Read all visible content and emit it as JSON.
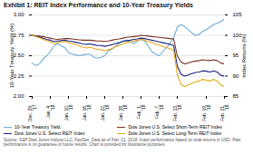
{
  "chart_data": {
    "type": "line",
    "title": "Exhibit 1: REIT Index Performance and 10-Year Treasury Yields",
    "caption": "Source: S&P Dow Jones Indices LLC, FactSet. Data as of Feb. 21, 2018. Index performance based on total returns in USD. Past performance is no guarantee of future results. Chart is provided for illustrative purposes.",
    "ylabel": "10-Year Treasury Yield (%)",
    "y2label": "Index Returns (%)",
    "categories": [
      "Dec. 29,\n'17",
      null,
      null,
      null,
      null,
      "Jan. 4,\n'18",
      null,
      null,
      null,
      null,
      "Jan. 10,\n'18",
      null,
      null,
      null,
      null,
      "Jan. 16,\n'18",
      null,
      null,
      null,
      null,
      "Jan. 22,\n'18",
      null,
      null,
      null,
      null,
      "Jan. 28,\n'18",
      null,
      null,
      null,
      null,
      "Feb. 1,\n'18",
      null,
      null,
      null,
      null,
      "Feb. 7,\n'18",
      null,
      null,
      null,
      null,
      "Feb. 13,\n'18",
      null,
      null,
      null,
      null,
      null,
      null,
      null,
      "Feb. 19,\n'18",
      null,
      null,
      null,
      null,
      "Feb. 21,\n'18"
    ],
    "ylim": [
      2.0,
      3.0
    ],
    "yticks": [
      {
        "value": 2.0,
        "label": "2.00"
      },
      2.25,
      {
        "value": 2.5,
        "label": "2.50"
      },
      2.75,
      {
        "value": 3.0,
        "label": "3.00"
      }
    ],
    "y2lim": [
      85,
      105
    ],
    "y2ticks": [
      85,
      90,
      95,
      100,
      105
    ],
    "grid": true,
    "series": [
      {
        "name": "10-Year Treasury Yield",
        "color": "#6baed6",
        "values": [
          2.41,
          2.38,
          2.4,
          2.46,
          2.5,
          2.55,
          2.62,
          2.65,
          2.62,
          2.6,
          2.54,
          2.52,
          2.51,
          2.5,
          2.51,
          2.52,
          2.52,
          2.48,
          2.47,
          2.48,
          2.5,
          2.56,
          2.58,
          2.62,
          2.65,
          2.68,
          2.69,
          2.67,
          2.65,
          2.68,
          2.7,
          2.68,
          2.62,
          2.55,
          2.52,
          2.5,
          2.55,
          2.6,
          2.65,
          2.72,
          2.85,
          2.88,
          2.86,
          2.82,
          2.78,
          2.75,
          2.76,
          2.8,
          2.82,
          2.85,
          2.88,
          2.9,
          2.92,
          2.95
        ]
      },
      {
        "name": "Dow Jones U.S. Select Short-Term REIT Index",
        "color": "#7b3020",
        "axis": "y2",
        "values": [
          100.0,
          99.9,
          99.8,
          99.7,
          99.5,
          99.3,
          99.1,
          99.0,
          99.1,
          99.2,
          99.2,
          99.1,
          99.0,
          98.9,
          98.8,
          98.8,
          98.8,
          98.7,
          98.6,
          98.6,
          98.5,
          98.6,
          98.8,
          99.0,
          99.1,
          99.3,
          99.5,
          99.6,
          99.7,
          99.8,
          100.0,
          99.9,
          99.8,
          99.7,
          99.6,
          99.5,
          99.4,
          99.3,
          99.2,
          99.1,
          95.0,
          93.5,
          93.0,
          93.2,
          93.5,
          93.7,
          93.8,
          94.0,
          93.9,
          93.8,
          94.0,
          93.8,
          93.2,
          93.0
        ]
      },
      {
        "name": "Dow Jones U.S. Select REIT Index",
        "color": "#1a237e",
        "axis": "y2",
        "values": [
          100.0,
          99.8,
          99.6,
          99.3,
          99.0,
          98.8,
          98.5,
          98.6,
          98.7,
          98.8,
          98.6,
          98.5,
          98.3,
          98.1,
          97.9,
          97.8,
          97.9,
          97.7,
          97.5,
          97.5,
          97.3,
          97.5,
          97.7,
          98.0,
          98.2,
          98.5,
          98.7,
          98.8,
          99.0,
          99.1,
          99.3,
          99.2,
          99.0,
          98.8,
          98.6,
          98.4,
          98.2,
          98.0,
          97.8,
          97.5,
          92.5,
          90.5,
          90.0,
          90.3,
          90.6,
          90.9,
          91.0,
          91.3,
          91.2,
          91.0,
          91.3,
          91.0,
          90.2,
          90.0
        ]
      },
      {
        "name": "Dow Jones U.S. Select Long-Term REIT Index",
        "color": "#e6a817",
        "axis": "y2",
        "values": [
          100.0,
          99.7,
          99.4,
          99.0,
          98.7,
          98.4,
          98.0,
          98.2,
          98.4,
          98.5,
          98.2,
          98.0,
          97.7,
          97.4,
          97.1,
          96.9,
          97.1,
          96.8,
          96.5,
          96.5,
          96.2,
          96.5,
          96.8,
          97.2,
          97.5,
          97.9,
          98.2,
          98.4,
          98.6,
          98.8,
          99.0,
          98.8,
          98.5,
          98.2,
          97.9,
          97.6,
          97.3,
          97.0,
          96.7,
          96.3,
          90.5,
          88.0,
          87.4,
          87.8,
          88.2,
          88.6,
          88.8,
          89.2,
          89.0,
          88.8,
          89.2,
          88.8,
          87.8,
          87.5
        ]
      }
    ]
  }
}
